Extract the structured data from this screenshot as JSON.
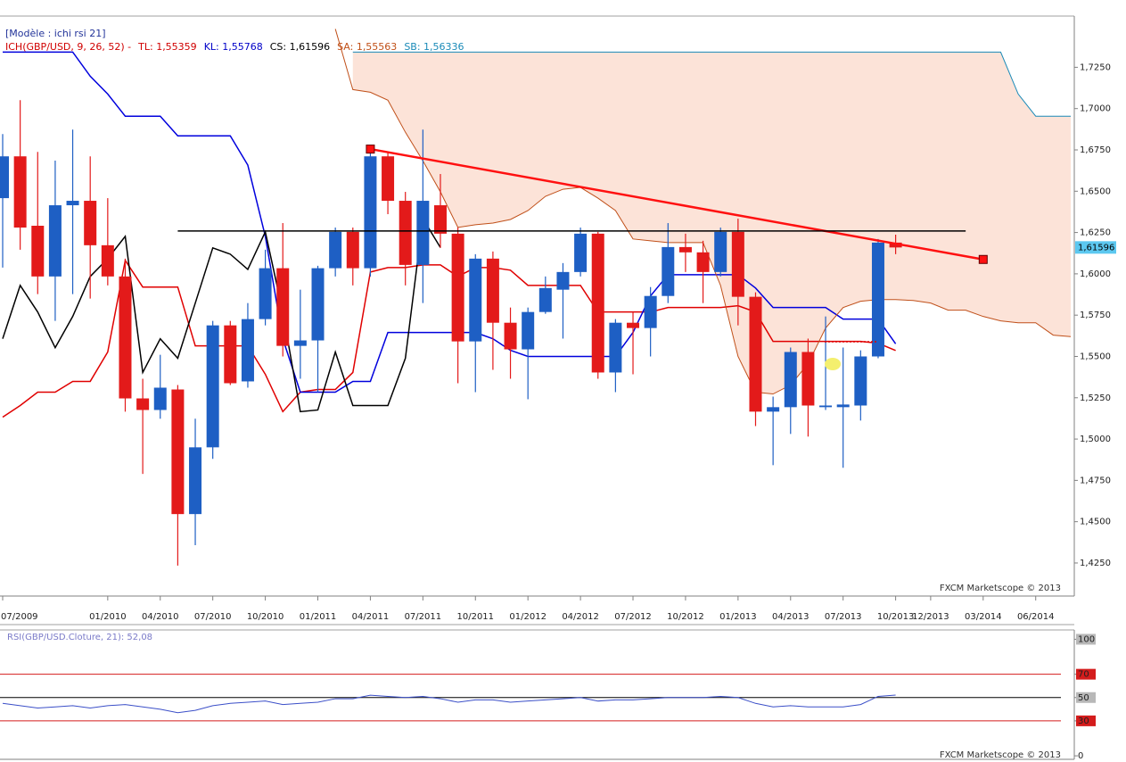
{
  "chart_data": [
    {
      "type": "candlestick",
      "title": "[Modèle : ichi rsi 21]",
      "indicator_label": "ICH(GBP/USD, 9, 26, 52) -",
      "indicator_color": "#d00000",
      "indicator_items": [
        {
          "text": "TL: 1,55359",
          "color": "#d00000"
        },
        {
          "text": "KL: 1,55768",
          "color": "#0000c8"
        },
        {
          "text": "CS: 1,61596",
          "color": "#000000"
        },
        {
          "text": "SA: 1,55563",
          "color": "#c05018"
        },
        {
          "text": "SB: 1,56336",
          "color": "#1a8ab8"
        }
      ],
      "watermark": "FXCM Marketscope © 2013",
      "x": [
        "07/2009",
        "08/2009",
        "09/2009",
        "10/2009",
        "11/2009",
        "12/2009",
        "01/2010",
        "02/2010",
        "03/2010",
        "04/2010",
        "05/2010",
        "06/2010",
        "07/2010",
        "08/2010",
        "09/2010",
        "10/2010",
        "11/2010",
        "12/2010",
        "01/2011",
        "02/2011",
        "03/2011",
        "04/2011",
        "05/2011",
        "06/2011",
        "07/2011",
        "08/2011",
        "09/2011",
        "10/2011",
        "11/2011",
        "12/2011",
        "01/2012",
        "02/2012",
        "03/2012",
        "04/2012",
        "05/2012",
        "06/2012",
        "07/2012",
        "08/2012",
        "09/2012",
        "10/2012",
        "11/2012",
        "12/2012",
        "01/2013",
        "02/2013",
        "03/2013",
        "04/2013",
        "05/2013",
        "06/2013",
        "07/2013",
        "08/2013",
        "09/2013",
        "10/2013"
      ],
      "open": [
        1.6458,
        1.6711,
        1.6291,
        1.5984,
        1.6415,
        1.6442,
        1.6173,
        1.5984,
        1.5246,
        1.5176,
        1.53,
        1.4546,
        1.495,
        1.5688,
        1.5349,
        1.5726,
        1.6034,
        1.5564,
        1.5597,
        1.6034,
        1.6254,
        1.6034,
        1.6711,
        1.6442,
        1.6054,
        1.6415,
        1.6243,
        1.5591,
        1.6092,
        1.5704,
        1.5543,
        1.5769,
        1.5904,
        1.6011,
        1.6243,
        1.5403,
        1.5704,
        1.5672,
        1.5866,
        1.6162,
        1.613,
        1.6011,
        1.6254,
        1.5861,
        1.5166,
        1.5193,
        1.5527,
        1.5193,
        1.5193,
        1.5203,
        1.55,
        1.6189
      ],
      "high": [
        1.6846,
        1.7051,
        1.6738,
        1.6685,
        1.6873,
        1.6711,
        1.6458,
        1.6092,
        1.5365,
        1.551,
        1.5327,
        1.5123,
        1.5715,
        1.5715,
        1.5823,
        1.6146,
        1.6307,
        1.5904,
        1.6049,
        1.628,
        1.628,
        1.6738,
        1.6738,
        1.6496,
        1.6873,
        1.6604,
        1.628,
        1.6119,
        1.6135,
        1.5796,
        1.5796,
        1.5984,
        1.6065,
        1.628,
        1.6254,
        1.5726,
        1.5769,
        1.592,
        1.6307,
        1.6243,
        1.62,
        1.628,
        1.6334,
        1.5888,
        1.5257,
        1.5554,
        1.5608,
        1.5742,
        1.5554,
        1.5537,
        1.6211,
        1.6237
      ],
      "low": [
        1.6038,
        1.6146,
        1.5877,
        1.5715,
        1.5877,
        1.585,
        1.593,
        1.5166,
        1.4789,
        1.5123,
        1.4234,
        1.4358,
        1.488,
        1.5327,
        1.5311,
        1.5688,
        1.55,
        1.5365,
        1.5284,
        1.5984,
        1.593,
        1.5984,
        1.6361,
        1.593,
        1.5823,
        1.6157,
        1.5338,
        1.5284,
        1.5419,
        1.5365,
        1.5241,
        1.5758,
        1.5608,
        1.5984,
        1.5365,
        1.5284,
        1.5392,
        1.55,
        1.5823,
        1.6011,
        1.5823,
        1.5984,
        1.5688,
        1.5079,
        1.4842,
        1.5031,
        1.5015,
        1.5176,
        1.4826,
        1.5112,
        1.5489,
        1.6119
      ],
      "close": [
        1.6711,
        1.628,
        1.5984,
        1.6415,
        1.6442,
        1.6173,
        1.5984,
        1.5246,
        1.5176,
        1.5311,
        1.4546,
        1.495,
        1.5688,
        1.5338,
        1.5726,
        1.6034,
        1.5564,
        1.5597,
        1.6034,
        1.6254,
        1.6034,
        1.6711,
        1.6442,
        1.6054,
        1.6442,
        1.6243,
        1.5591,
        1.6092,
        1.5704,
        1.5543,
        1.5769,
        1.5914,
        1.6011,
        1.6243,
        1.5403,
        1.5704,
        1.5672,
        1.5866,
        1.6162,
        1.613,
        1.6011,
        1.6254,
        1.5861,
        1.5166,
        1.5193,
        1.5527,
        1.5203,
        1.5203,
        1.5209,
        1.55,
        1.6189,
        1.61596
      ],
      "up_color": "#1e5fc4",
      "down_color": "#e31a1a",
      "cloud_color": "#fce3d8",
      "lines": [
        {
          "color": "#e00000",
          "x": [
            "07/2009",
            "08/2009",
            "09/2009",
            "10/2009",
            "11/2009",
            "12/2009",
            "01/2010",
            "02/2010",
            "03/2010",
            "04/2010",
            "05/2010",
            "06/2010",
            "07/2010",
            "08/2010",
            "09/2010",
            "10/2010",
            "11/2010",
            "12/2010",
            "01/2011",
            "02/2011",
            "03/2011",
            "04/2011",
            "05/2011",
            "06/2011",
            "07/2011",
            "08/2011",
            "09/2011",
            "10/2011",
            "11/2011",
            "12/2011",
            "01/2012",
            "02/2012",
            "03/2012",
            "04/2012",
            "05/2012",
            "06/2012",
            "07/2012",
            "08/2012",
            "09/2012",
            "10/2012",
            "11/2012",
            "12/2012",
            "01/2013",
            "02/2013",
            "03/2013",
            "04/2013",
            "05/2013",
            "06/2013",
            "07/2013",
            "08/2013",
            "09/2013",
            "10/2013"
          ],
          "values": [
            1.5133,
            1.5203,
            1.5284,
            1.5284,
            1.5349,
            1.5349,
            1.5527,
            1.6081,
            1.592,
            1.592,
            1.592,
            1.5564,
            1.5564,
            1.5564,
            1.5564,
            1.5392,
            1.5166,
            1.5284,
            1.53,
            1.53,
            1.5403,
            1.6011,
            1.6038,
            1.6038,
            1.6054,
            1.6054,
            1.5984,
            1.6038,
            1.6038,
            1.6022,
            1.593,
            1.593,
            1.593,
            1.593,
            1.5769,
            1.5769,
            1.5769,
            1.5769,
            1.5796,
            1.5796,
            1.5796,
            1.5796,
            1.5807,
            1.5769,
            1.5591,
            1.5591,
            1.5591,
            1.5591,
            1.5591,
            1.5591,
            1.558,
            1.55359
          ]
        },
        {
          "color": "#0000dd",
          "x": [
            "07/2009",
            "08/2009",
            "09/2009",
            "10/2009",
            "11/2009",
            "12/2009",
            "01/2010",
            "02/2010",
            "03/2010",
            "04/2010",
            "05/2010",
            "06/2010",
            "07/2010",
            "08/2010",
            "09/2010",
            "10/2010",
            "11/2010",
            "12/2010",
            "01/2011",
            "02/2011",
            "03/2011",
            "04/2011",
            "05/2011",
            "06/2011",
            "07/2011",
            "08/2011",
            "09/2011",
            "10/2011",
            "11/2011",
            "12/2011",
            "01/2012",
            "02/2012",
            "03/2012",
            "04/2012",
            "05/2012",
            "06/2012",
            "07/2012",
            "08/2012",
            "09/2012",
            "10/2012",
            "11/2012",
            "12/2012",
            "01/2013",
            "02/2013",
            "03/2013",
            "04/2013",
            "05/2013",
            "06/2013",
            "07/2013",
            "08/2013",
            "09/2013",
            "10/2013"
          ],
          "values": [
            1.7342,
            1.7342,
            1.7342,
            1.7342,
            1.7342,
            1.7196,
            1.7088,
            1.6954,
            1.6954,
            1.6954,
            1.6835,
            1.6835,
            1.6835,
            1.6835,
            1.6658,
            1.6227,
            1.5607,
            1.5284,
            1.5284,
            1.5284,
            1.5349,
            1.5349,
            1.5645,
            1.5645,
            1.5645,
            1.5645,
            1.5645,
            1.5645,
            1.5607,
            1.5537,
            1.55,
            1.55,
            1.55,
            1.55,
            1.55,
            1.55,
            1.5645,
            1.5866,
            1.5995,
            1.5995,
            1.5995,
            1.5995,
            1.5995,
            1.5914,
            1.5796,
            1.5796,
            1.5796,
            1.5796,
            1.5726,
            1.5726,
            1.5726,
            1.55768
          ]
        },
        {
          "color": "#000000",
          "x": [
            "07/2009",
            "08/2009",
            "09/2009",
            "10/2009",
            "11/2009",
            "12/2009",
            "01/2010",
            "02/2010",
            "03/2010",
            "04/2010",
            "05/2010",
            "06/2010",
            "07/2010",
            "08/2010",
            "09/2010",
            "10/2010",
            "11/2010",
            "12/2010",
            "01/2011",
            "02/2011",
            "03/2011",
            "04/2011",
            "05/2011",
            "06/2011",
            "07/2011",
            "08/2011"
          ],
          "values": [
            1.5607,
            1.593,
            1.5769,
            1.5553,
            1.5742,
            1.5984,
            1.6092,
            1.6227,
            1.5403,
            1.5607,
            1.5489,
            1.5823,
            1.6157,
            1.6119,
            1.6027,
            1.6254,
            1.5769,
            1.5166,
            1.5176,
            1.5527,
            1.5203,
            1.5203,
            1.5203,
            1.5489,
            1.6334,
            1.61596
          ]
        },
        {
          "color": "#c0501a",
          "cloud": true,
          "x": [
            "02/2011",
            "03/2011",
            "04/2011",
            "05/2011",
            "06/2011",
            "07/2011",
            "08/2011",
            "09/2011",
            "10/2011",
            "11/2011",
            "12/2011",
            "01/2012",
            "02/2012",
            "03/2012",
            "04/2012",
            "05/2012",
            "06/2012",
            "07/2012",
            "08/2012",
            "09/2012",
            "10/2012",
            "11/2012",
            "12/2012",
            "01/2013",
            "02/2013",
            "03/2013",
            "04/2013",
            "05/2013",
            "06/2013",
            "07/2013",
            "08/2013",
            "09/2013",
            "10/2013",
            "11/2013",
            "12/2013",
            "01/2014",
            "02/2014",
            "03/2014",
            "04/2014",
            "05/2014",
            "06/2014",
            "07/2014",
            "08/2014"
          ],
          "values": [
            1.7482,
            1.7115,
            1.7099,
            1.7051,
            1.6857,
            1.6684,
            1.6496,
            1.6281,
            1.6297,
            1.6307,
            1.6329,
            1.6383,
            1.6469,
            1.6512,
            1.6523,
            1.6458,
            1.6383,
            1.6211,
            1.62,
            1.6189,
            1.6189,
            1.6189,
            1.593,
            1.55,
            1.5284,
            1.5273,
            1.5327,
            1.5456,
            1.5672,
            1.5796,
            1.5834,
            1.5844,
            1.5844,
            1.5839,
            1.5823,
            1.578,
            1.578,
            1.5742,
            1.5715,
            1.5704,
            1.5704,
            1.5629,
            1.562
          ]
        },
        {
          "color": "#1a8ab8",
          "cloud": true,
          "x": [
            "03/2011",
            "04/2011",
            "05/2011",
            "06/2011",
            "07/2011",
            "08/2011",
            "09/2011",
            "10/2011",
            "11/2011",
            "12/2011",
            "01/2012",
            "02/2012",
            "03/2012",
            "04/2012",
            "05/2012",
            "06/2012",
            "07/2012",
            "08/2012",
            "09/2012",
            "10/2012",
            "11/2012",
            "12/2012",
            "01/2013",
            "02/2013",
            "03/2013",
            "04/2013",
            "05/2013",
            "06/2013",
            "07/2013",
            "08/2013",
            "09/2013",
            "10/2013",
            "11/2013",
            "12/2013",
            "01/2014",
            "02/2014",
            "03/2014",
            "04/2014",
            "05/2014",
            "06/2014",
            "07/2014",
            "08/2014"
          ],
          "values": [
            1.7342,
            1.7342,
            1.7342,
            1.7342,
            1.7342,
            1.7342,
            1.7342,
            1.7342,
            1.7342,
            1.7342,
            1.7342,
            1.7342,
            1.7342,
            1.7342,
            1.7342,
            1.7342,
            1.7342,
            1.7342,
            1.7342,
            1.7342,
            1.7342,
            1.7342,
            1.7342,
            1.7342,
            1.7342,
            1.7342,
            1.7342,
            1.7342,
            1.7342,
            1.7342,
            1.7342,
            1.7342,
            1.7342,
            1.7342,
            1.7342,
            1.7342,
            1.7342,
            1.7342,
            1.7088,
            1.6954,
            1.6954,
            1.6954
          ]
        }
      ],
      "drawings": [
        {
          "color": "#ff1010",
          "end_markers": true,
          "x": [
            "04/2011",
            "03/2014"
          ],
          "values": [
            1.6755,
            1.6087
          ]
        },
        {
          "color": "#000000",
          "x": [
            "05/2010",
            "02/2014"
          ],
          "values": [
            1.6259,
            1.6259
          ]
        }
      ],
      "last_price": {
        "value": 1.61596,
        "label": "1,61596"
      },
      "xlim": [
        "07/2009",
        "08/2014"
      ],
      "ylim": [
        1.405,
        1.756
      ],
      "xticks": [
        "07/2009",
        "01/2010",
        "04/2010",
        "07/2010",
        "10/2010",
        "01/2011",
        "04/2011",
        "07/2011",
        "10/2011",
        "01/2012",
        "04/2012",
        "07/2012",
        "10/2012",
        "01/2013",
        "04/2013",
        "07/2013",
        "10/2013",
        "12/2013",
        "03/2014",
        "06/2014"
      ],
      "yticks": [
        {
          "value": 1.425,
          "label": "1,4250"
        },
        {
          "value": 1.45,
          "label": "1,4500"
        },
        {
          "value": 1.475,
          "label": "1,4750"
        },
        {
          "value": 1.5,
          "label": "1,5000"
        },
        {
          "value": 1.525,
          "label": "1,5250"
        },
        {
          "value": 1.55,
          "label": "1,5500"
        },
        {
          "value": 1.575,
          "label": "1,5750"
        },
        {
          "value": 1.6,
          "label": "1,6000"
        },
        {
          "value": 1.625,
          "label": "1,6250"
        },
        {
          "value": 1.65,
          "label": "1,6500"
        },
        {
          "value": 1.675,
          "label": "1,6750"
        },
        {
          "value": 1.7,
          "label": "1,7000"
        },
        {
          "value": 1.725,
          "label": "1,7250"
        }
      ]
    },
    {
      "type": "line",
      "title": "RSI(GBP/USD.Cloture, 21): 52,08",
      "watermark": "FXCM Marketscope © 2013",
      "color": "#3b4fc8",
      "x": [
        "07/2009",
        "08/2009",
        "09/2009",
        "10/2009",
        "11/2009",
        "12/2009",
        "01/2010",
        "02/2010",
        "03/2010",
        "04/2010",
        "05/2010",
        "06/2010",
        "07/2010",
        "08/2010",
        "09/2010",
        "10/2010",
        "11/2010",
        "12/2010",
        "01/2011",
        "02/2011",
        "03/2011",
        "04/2011",
        "05/2011",
        "06/2011",
        "07/2011",
        "08/2011",
        "09/2011",
        "10/2011",
        "11/2011",
        "12/2011",
        "01/2012",
        "02/2012",
        "03/2012",
        "04/2012",
        "05/2012",
        "06/2012",
        "07/2012",
        "08/2012",
        "09/2012",
        "10/2012",
        "11/2012",
        "12/2012",
        "01/2013",
        "02/2013",
        "03/2013",
        "04/2013",
        "05/2013",
        "06/2013",
        "07/2013",
        "08/2013",
        "09/2013",
        "10/2013"
      ],
      "values": [
        45,
        43,
        41,
        42,
        43,
        41,
        43,
        44,
        42,
        40,
        37,
        39,
        43,
        45,
        46,
        47,
        44,
        45,
        46,
        49,
        49,
        52,
        51,
        50,
        51,
        49,
        46,
        48,
        48,
        46,
        47,
        48,
        49,
        50,
        47,
        48,
        48,
        49,
        50,
        50,
        50,
        51,
        50,
        45,
        42,
        43,
        42,
        42,
        42,
        44,
        51,
        52.08
      ],
      "ylim": [
        -3,
        108
      ],
      "yticks": [
        0,
        30,
        50,
        70,
        100
      ],
      "tick_backgrounds": [
        null,
        "#d41c1c",
        "#b8b8b8",
        "#d41c1c",
        "#b8b8b8"
      ],
      "levels": [
        {
          "value": 30,
          "color": "#d41c1c"
        },
        {
          "value": 50,
          "color": "#000000"
        },
        {
          "value": 70,
          "color": "#d41c1c"
        }
      ]
    }
  ]
}
